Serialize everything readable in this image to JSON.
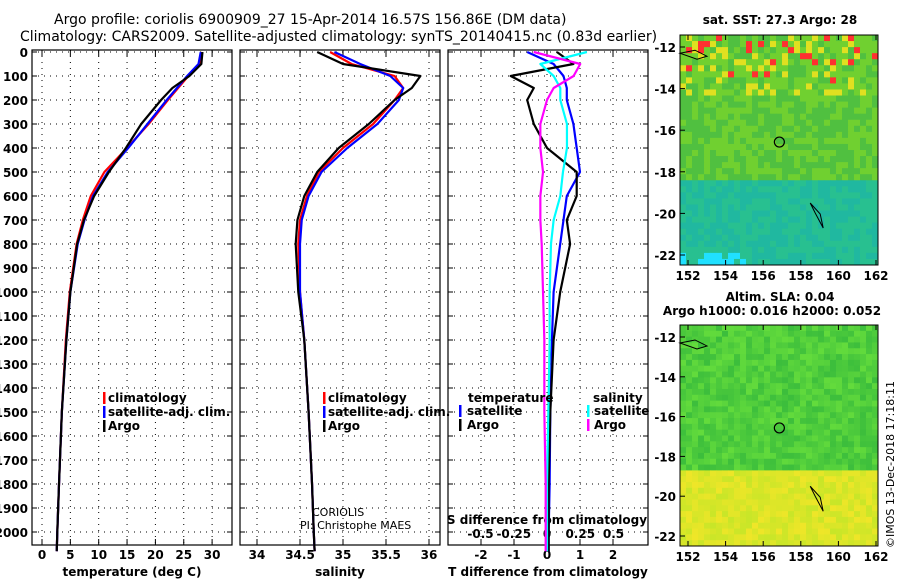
{
  "title_line1": "Argo profile: coriolis 6900909_27 15-Apr-2014 16.57S 156.86E (DM data)",
  "title_line2": "Climatology: CARS2009. Satellite-adjusted climatology: synTS_20140415.nc (0.83d earlier)",
  "credit": "CORIOLIS",
  "pi": "PI: Christophe MAES",
  "watermark": "©IMOS 13-Dec-2018 17:18:11",
  "colors": {
    "climatology": "#ff0000",
    "satellite": "#0000ff",
    "argo": "#000000",
    "sal_satellite": "#00ffff",
    "sal_argo": "#ff00ff"
  },
  "chart_data": [
    {
      "type": "line",
      "title": "temperature",
      "xlabel": "temperature (deg C)",
      "xlim": [
        -2,
        32
      ],
      "xticks": [
        0,
        5,
        10,
        15,
        20,
        25,
        30
      ],
      "ylim": [
        2100,
        0
      ],
      "yticks": [
        0,
        100,
        200,
        300,
        400,
        500,
        600,
        700,
        800,
        900,
        1000,
        1100,
        1200,
        1300,
        1400,
        1500,
        1600,
        1700,
        1800,
        1900,
        2000
      ],
      "depth": [
        0,
        50,
        100,
        150,
        200,
        300,
        400,
        500,
        600,
        700,
        800,
        1000,
        1200,
        1500,
        1800,
        2000,
        2080
      ],
      "legend": [
        "climatology",
        "satellite-adj. clim.",
        "Argo"
      ],
      "series": [
        {
          "name": "climatology",
          "values": [
            28.2,
            27.8,
            25.8,
            24,
            22.2,
            18.8,
            15,
            11,
            8.6,
            7.2,
            6.1,
            4.9,
            4.2,
            3.5,
            3,
            2.7,
            2.6
          ]
        },
        {
          "name": "satellite-adj. clim.",
          "values": [
            28,
            27.6,
            25.6,
            23.8,
            22,
            18.6,
            15.2,
            11.6,
            9,
            7.5,
            6.3,
            5,
            4.3,
            3.5,
            3,
            2.7,
            2.6
          ]
        },
        {
          "name": "Argo",
          "values": [
            28.3,
            28.1,
            26,
            23,
            21,
            17.5,
            14.8,
            11.8,
            9.2,
            7.4,
            6.2,
            5,
            4.3,
            3.5,
            3,
            2.7,
            2.6
          ]
        }
      ]
    },
    {
      "type": "line",
      "title": "salinity",
      "xlabel": "salinity",
      "xlim": [
        33.8,
        36.1
      ],
      "xticks": [
        34,
        34.5,
        35,
        35.5,
        36
      ],
      "ylim": [
        2100,
        0
      ],
      "depth": [
        0,
        50,
        100,
        150,
        200,
        300,
        400,
        500,
        600,
        700,
        800,
        1000,
        1200,
        1500,
        1800,
        2000,
        2080
      ],
      "legend": [
        "climatology",
        "satellite-adj. clim.",
        "Argo"
      ],
      "series": [
        {
          "name": "climatology",
          "values": [
            34.85,
            35.1,
            35.6,
            35.7,
            35.6,
            35.35,
            35.0,
            34.72,
            34.58,
            34.5,
            34.48,
            34.5,
            34.55,
            34.6,
            34.64,
            34.66,
            34.67
          ]
        },
        {
          "name": "satellite-adj. clim.",
          "values": [
            34.9,
            35.2,
            35.55,
            35.7,
            35.65,
            35.4,
            35.05,
            34.75,
            34.6,
            34.52,
            34.5,
            34.5,
            34.55,
            34.6,
            34.64,
            34.66,
            34.67
          ]
        },
        {
          "name": "Argo",
          "values": [
            34.7,
            35.0,
            35.9,
            35.8,
            35.6,
            35.3,
            34.95,
            34.7,
            34.55,
            34.47,
            34.45,
            34.48,
            34.55,
            34.6,
            34.64,
            34.66,
            34.67
          ]
        }
      ]
    },
    {
      "type": "line",
      "title": "difference from climatology",
      "xlabel": "T difference from climatology",
      "xlim": [
        -2.9,
        2.9
      ],
      "xticks": [
        -2,
        -1,
        0,
        1,
        2
      ],
      "x2label": "S difference from climatology",
      "x2lim": [
        -0.72,
        0.72
      ],
      "x2ticks": [
        -0.5,
        -0.25,
        0,
        0.25,
        0.5
      ],
      "ylim": [
        2100,
        0
      ],
      "depth": [
        0,
        50,
        100,
        150,
        200,
        300,
        400,
        500,
        600,
        700,
        800,
        1000,
        1200,
        1500,
        1800,
        2000,
        2080
      ],
      "legend_temperature": {
        "header": "temperature",
        "items": [
          "satellite",
          "Argo"
        ]
      },
      "legend_salinity": {
        "header": "salinity",
        "items": [
          "satellite",
          "Argo"
        ]
      },
      "series": [
        {
          "name": "temperature satellite",
          "axis": "T",
          "values": [
            -0.6,
            0.2,
            0.5,
            0.6,
            0.6,
            0.8,
            0.9,
            1.0,
            0.6,
            0.5,
            0.4,
            0.2,
            0.15,
            0.1,
            0.08,
            0.05,
            0.05
          ]
        },
        {
          "name": "temperature Argo",
          "axis": "T",
          "values": [
            0.3,
            0.8,
            -1.1,
            -0.4,
            -0.6,
            -0.4,
            0.0,
            0.9,
            0.9,
            0.6,
            0.7,
            0.4,
            0.2,
            0.1,
            0.05,
            0.05,
            0.05
          ]
        },
        {
          "name": "salinity satellite",
          "axis": "S",
          "values": [
            0.3,
            -0.05,
            0.05,
            0.1,
            0.1,
            0.15,
            0.15,
            0.12,
            0.1,
            0.05,
            0.03,
            0.02,
            0.02,
            0.01,
            0.0,
            0.0,
            0.0
          ]
        },
        {
          "name": "salinity Argo",
          "axis": "S",
          "values": [
            -0.1,
            0.25,
            0.2,
            0.05,
            0.0,
            -0.05,
            -0.05,
            -0.03,
            -0.05,
            -0.05,
            -0.04,
            -0.03,
            -0.02,
            -0.02,
            -0.01,
            -0.01,
            -0.01
          ]
        }
      ]
    },
    {
      "type": "heatmap",
      "title": "sat. SST: 27.3 Argo: 28",
      "xticks": [
        152,
        154,
        156,
        158,
        160,
        162
      ],
      "yticks": [
        -12,
        -14,
        -16,
        -18,
        -20,
        -22
      ],
      "marker": {
        "lon": 156.86,
        "lat": -16.57
      }
    },
    {
      "type": "heatmap",
      "title": "Altim. SLA: 0.04",
      "subtitle": "Argo h1000: 0.016 h2000: 0.052",
      "xticks": [
        152,
        154,
        156,
        158,
        160,
        162
      ],
      "yticks": [
        -12,
        -14,
        -16,
        -18,
        -20,
        -22
      ],
      "marker": {
        "lon": 156.86,
        "lat": -16.57
      }
    }
  ]
}
